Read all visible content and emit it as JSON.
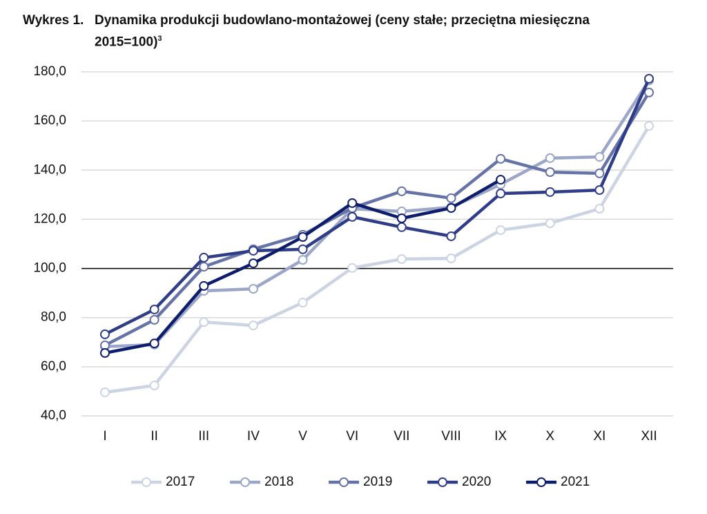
{
  "chart_data": {
    "type": "line",
    "label": "Wykres 1.",
    "title": "Dynamika produkcji budowlano-montażowej (ceny stałe; przeciętna miesięczna 2015=100)",
    "footnote_ref": "3",
    "categories": [
      "I",
      "II",
      "III",
      "IV",
      "V",
      "VI",
      "VII",
      "VIII",
      "IX",
      "X",
      "XI",
      "XII"
    ],
    "series": [
      {
        "name": "2017",
        "color": "#ccd3e3",
        "values": [
          49.6,
          52.4,
          78.2,
          76.8,
          86.1,
          100.2,
          103.8,
          104.1,
          115.6,
          118.4,
          124.3,
          158.0
        ]
      },
      {
        "name": "2018",
        "color": "#9ba6c9",
        "values": [
          68.2,
          69.0,
          90.9,
          91.7,
          103.5,
          124.3,
          123.2,
          124.9,
          134.2,
          144.9,
          145.4,
          176.5
        ]
      },
      {
        "name": "2019",
        "color": "#6673a6",
        "values": [
          68.7,
          79.1,
          100.7,
          107.8,
          113.7,
          124.6,
          131.4,
          128.6,
          144.6,
          139.2,
          138.7,
          171.6
        ]
      },
      {
        "name": "2020",
        "color": "#2f3d88",
        "values": [
          73.2,
          83.3,
          104.4,
          107.2,
          107.8,
          121.0,
          116.8,
          113.1,
          130.5,
          131.1,
          131.9,
          177.2
        ]
      },
      {
        "name": "2021",
        "color": "#0e1d6b",
        "values": [
          65.6,
          69.5,
          92.9,
          102.1,
          112.8,
          126.6,
          120.4,
          124.6,
          136.1,
          null,
          null,
          null
        ]
      }
    ],
    "ylim": [
      40,
      180
    ],
    "yticks": [
      {
        "value": 40,
        "label": "40,0"
      },
      {
        "value": 60,
        "label": "60,0"
      },
      {
        "value": 80,
        "label": "80,0"
      },
      {
        "value": 100,
        "label": "100,0"
      },
      {
        "value": 120,
        "label": "120,0"
      },
      {
        "value": 140,
        "label": "140,0"
      },
      {
        "value": 160,
        "label": "160,0"
      },
      {
        "value": 180,
        "label": "180,0"
      }
    ],
    "reference_line": 100,
    "grid": true,
    "legend": "bottom"
  }
}
